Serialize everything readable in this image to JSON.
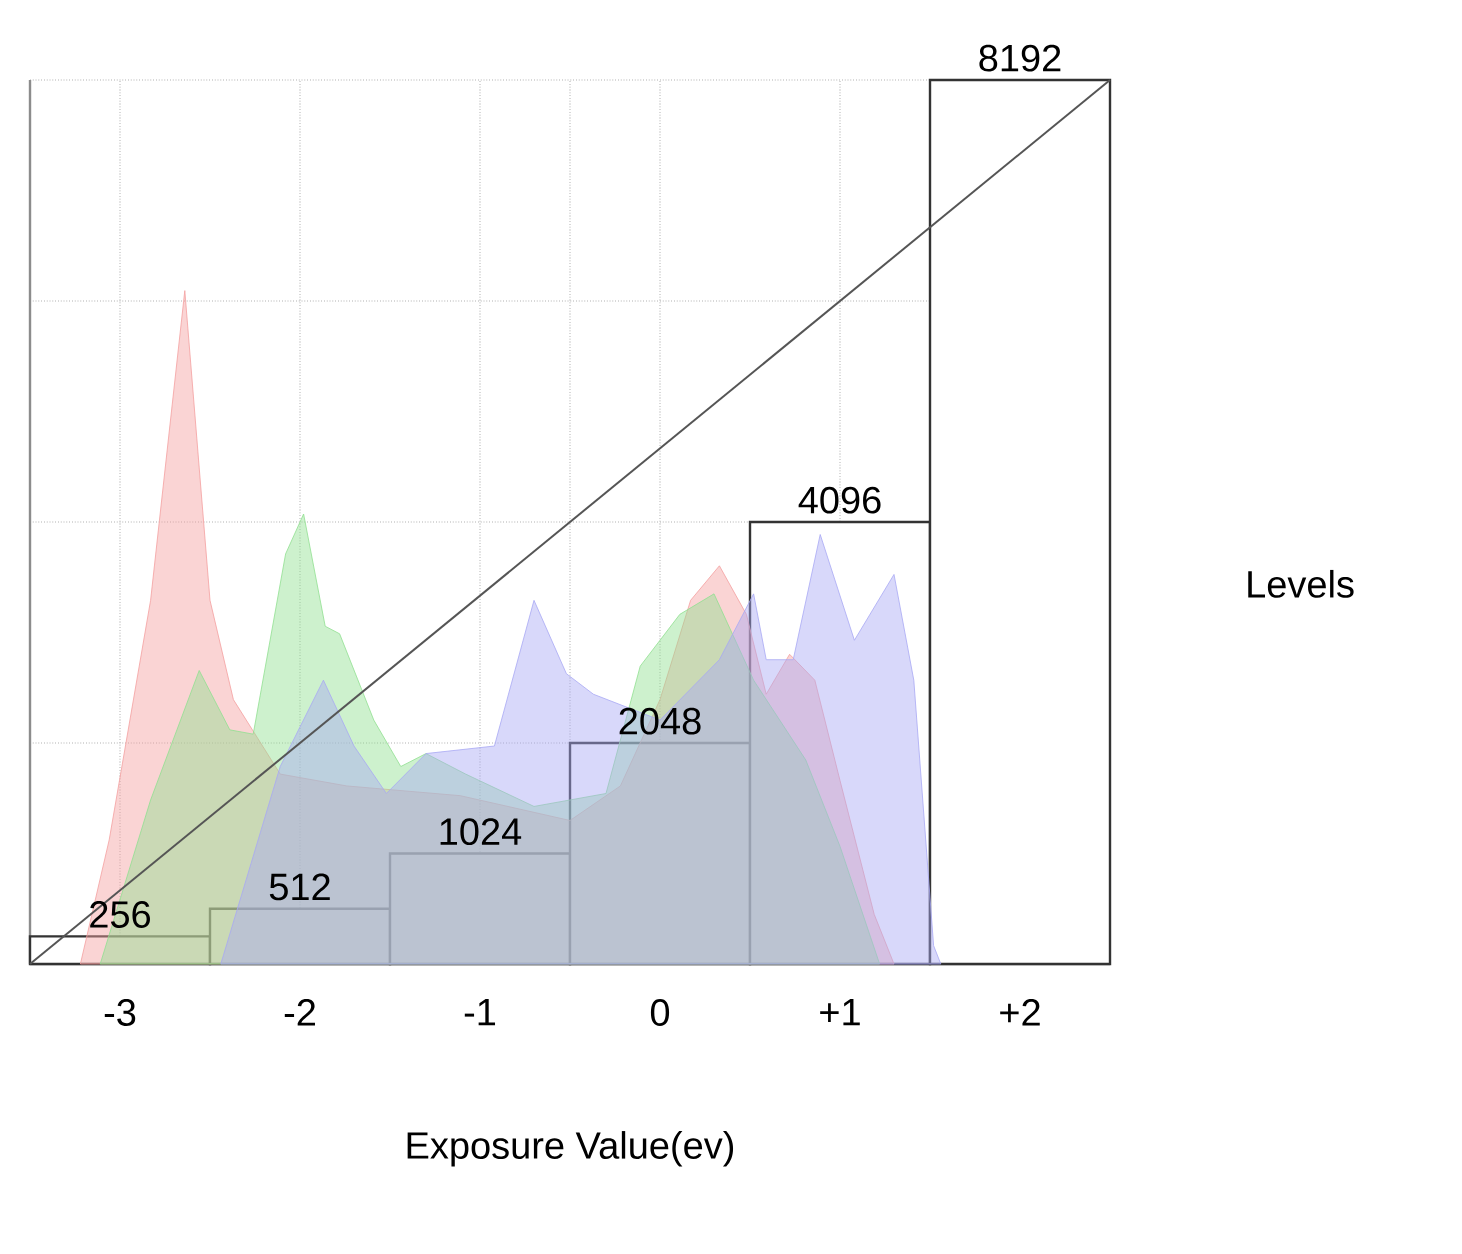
{
  "chart_data": {
    "type": "bar",
    "xlabel": "Exposure Value(ev)",
    "ylabel": "Levels",
    "xlim": [
      -3.5,
      2.5
    ],
    "xticks": [
      -3,
      -2,
      -1,
      {
        "value": -0.5,
        "label": null
      },
      0,
      {
        "value": 1,
        "label": "+1"
      },
      {
        "value": 2,
        "label": "+2"
      }
    ],
    "tick_labels": "x",
    "grid": true,
    "series": [
      {
        "type": "area",
        "color": "#f4a0a0",
        "x": [
          -3.22,
          -3.06,
          -2.83,
          -2.64,
          -2.5,
          -2.37,
          -2.11,
          -1.74,
          -1.11,
          -0.5,
          -0.22,
          0,
          0.17,
          0.33,
          0.48,
          0.59,
          0.72,
          0.86,
          1.0,
          1.19,
          1.3
        ],
        "values": [
          0,
          1150,
          3370,
          6240,
          3370,
          2450,
          1760,
          1650,
          1560,
          1330,
          1650,
          2450,
          3370,
          3690,
          3240,
          2500,
          2870,
          2630,
          1700,
          460,
          0
        ]
      },
      {
        "type": "area",
        "color": "#90e090",
        "x": [
          -3.11,
          -2.83,
          -2.56,
          -2.39,
          -2.26,
          -2.08,
          -1.98,
          -1.86,
          -1.78,
          -1.59,
          -1.44,
          -1.3,
          -1.08,
          -0.7,
          -0.3,
          -0.11,
          0.11,
          0.3,
          0.52,
          0.81,
          1.0,
          1.22
        ],
        "values": [
          0,
          1520,
          2720,
          2170,
          2130,
          3800,
          4170,
          3130,
          3060,
          2260,
          1830,
          1950,
          1760,
          1460,
          1580,
          2760,
          3240,
          3430,
          2630,
          1890,
          1090,
          0
        ]
      },
      {
        "type": "area",
        "color": "#a8a8f4",
        "x": [
          -2.44,
          -2.11,
          -1.87,
          -1.7,
          -1.52,
          -1.3,
          -0.92,
          -0.7,
          -0.52,
          -0.37,
          0,
          0.33,
          0.52,
          0.59,
          0.74,
          0.89,
          1.08,
          1.3,
          1.41,
          1.52,
          1.56
        ],
        "values": [
          0,
          1830,
          2630,
          2020,
          1580,
          1950,
          2020,
          3370,
          2690,
          2500,
          2260,
          2820,
          3430,
          2820,
          2820,
          3980,
          3000,
          3610,
          2630,
          170,
          0
        ]
      },
      {
        "color": "#333333",
        "x": [
          -3,
          -2,
          -1,
          0,
          1,
          2
        ],
        "values": [
          256,
          512,
          1024,
          2048,
          4096,
          8192
        ],
        "value_labels": [
          "256",
          "512",
          "1024",
          "2048",
          "4096",
          "8192"
        ]
      },
      {
        "type": "line",
        "color": "#555555",
        "x": [
          -3.5,
          2.5
        ],
        "values": [
          0,
          8192
        ]
      }
    ]
  }
}
